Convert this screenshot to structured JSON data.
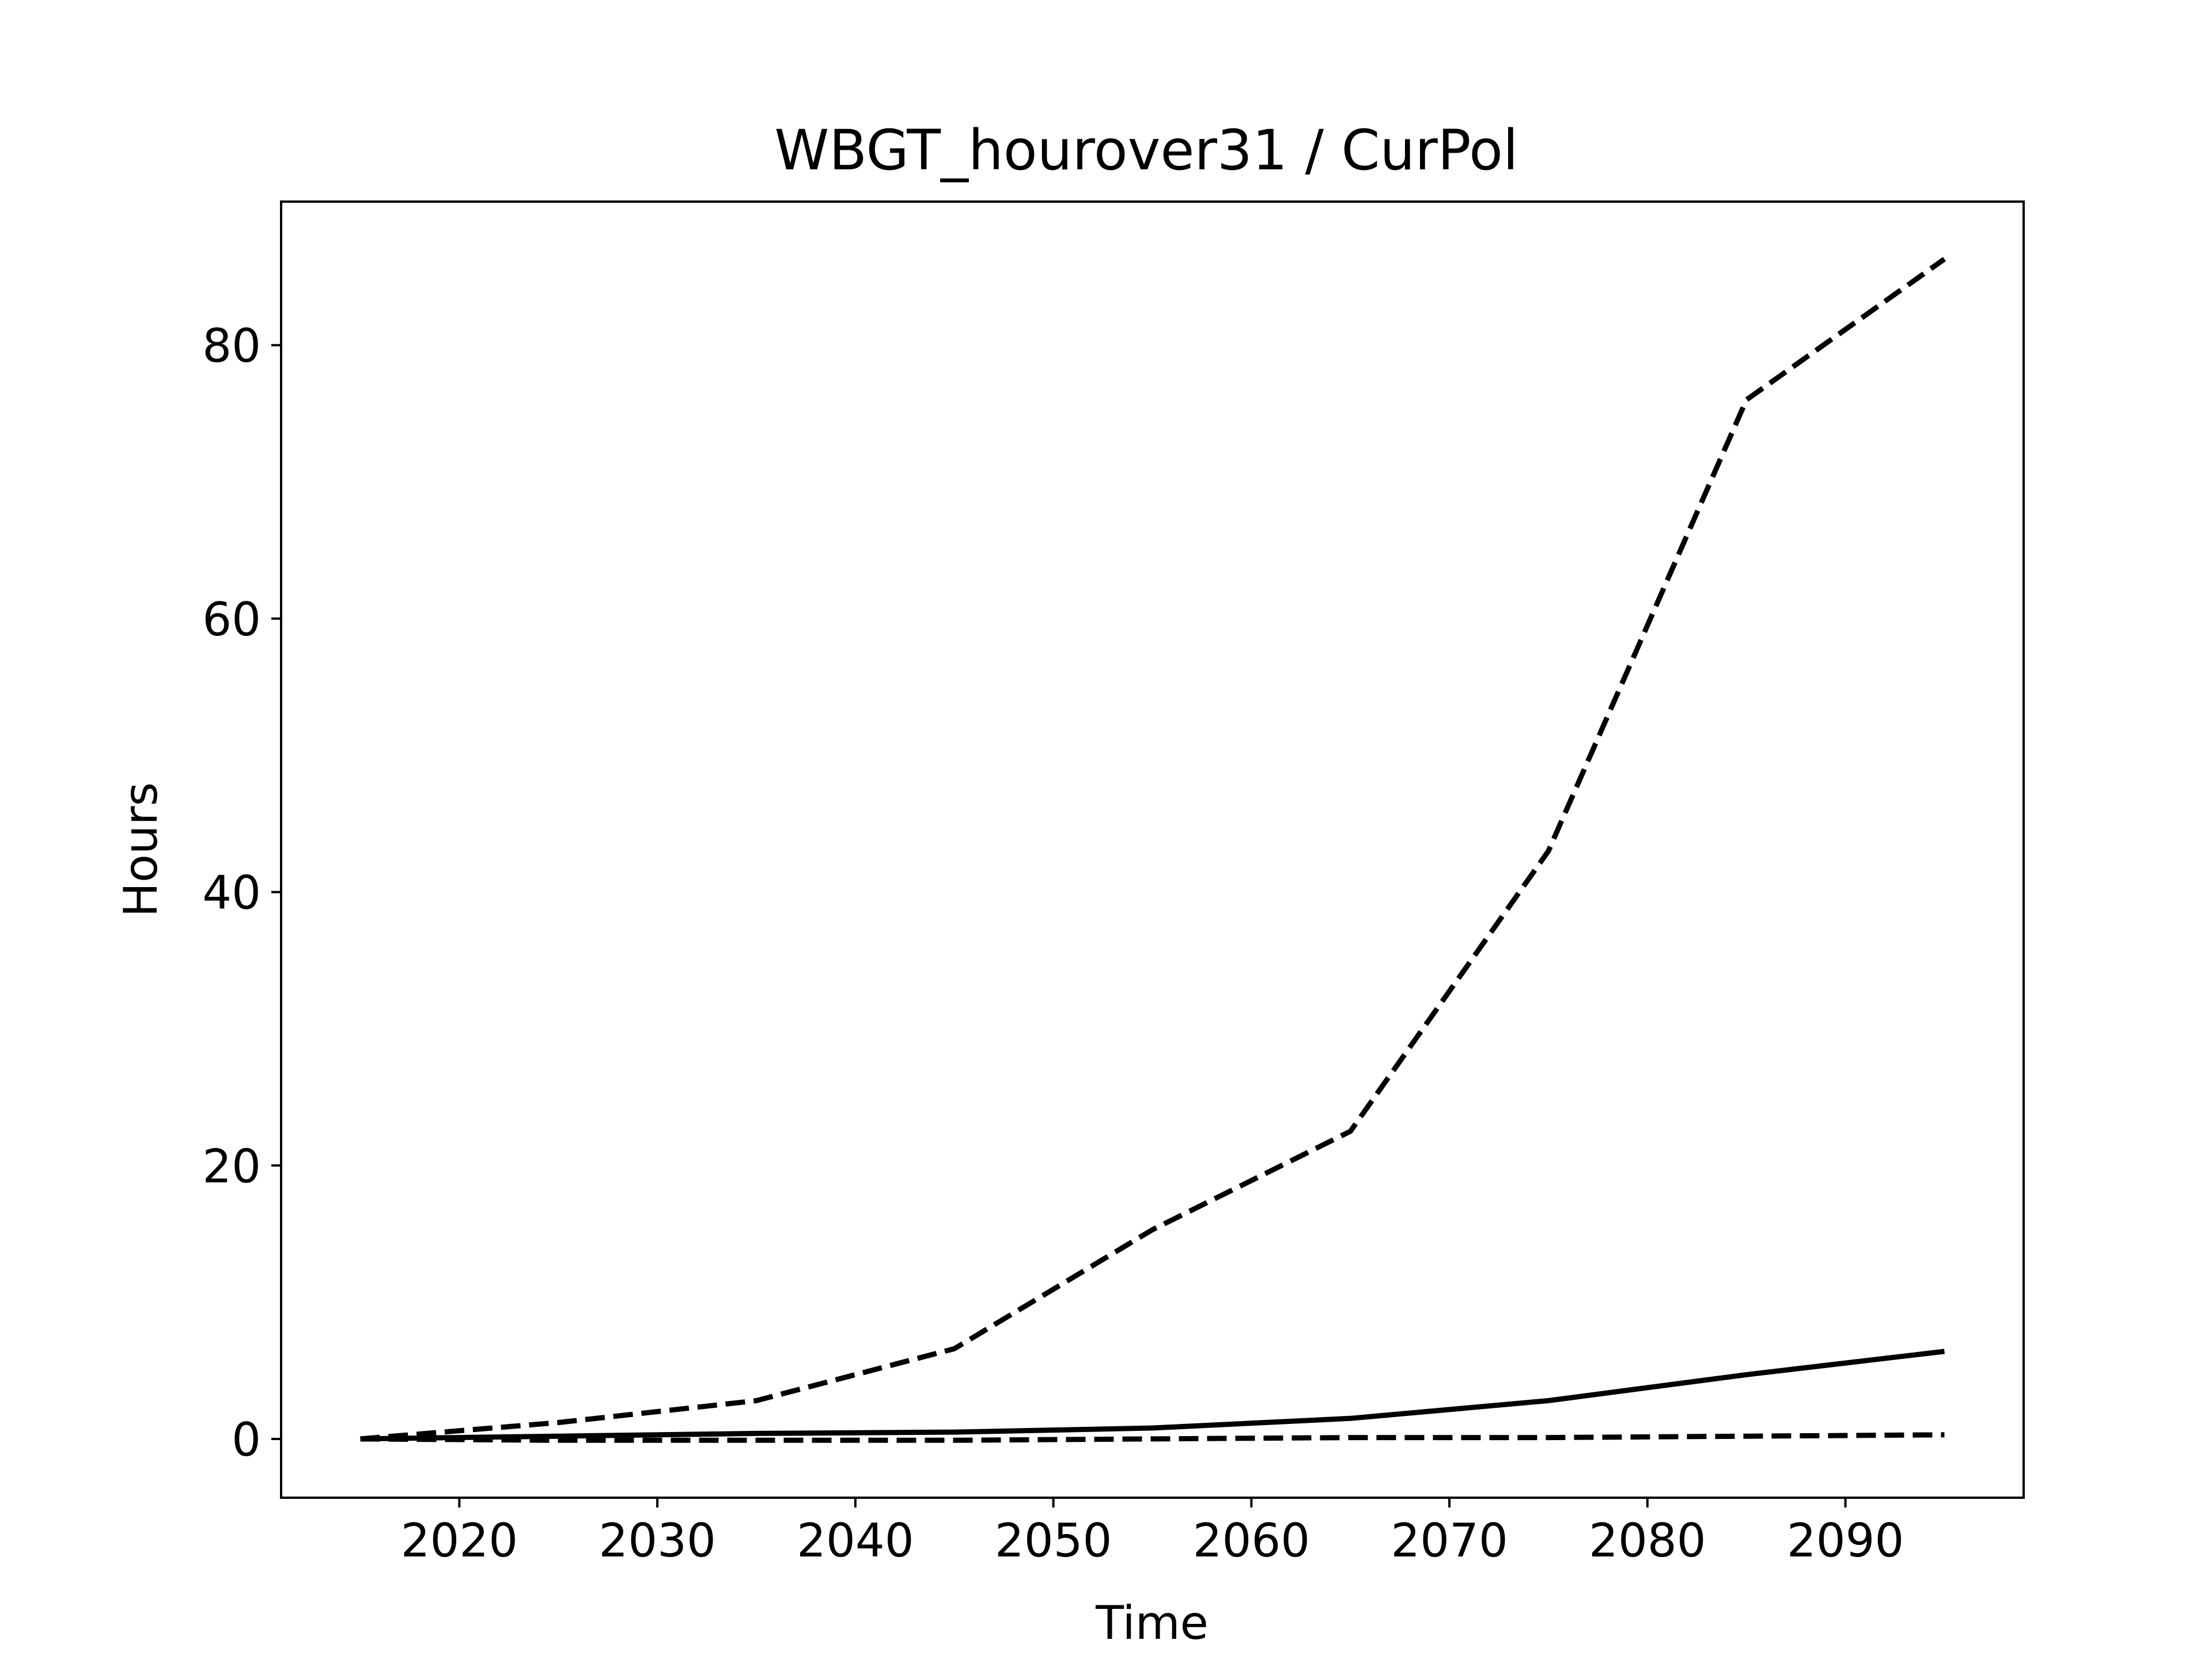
{
  "chart_data": {
    "type": "line",
    "title": "WBGT_hourover31 / CurPol",
    "xlabel": "Time",
    "ylabel": "Hours",
    "xlim": [
      2011,
      2099
    ],
    "ylim": [
      -4.3,
      90.5
    ],
    "xticks": [
      2020,
      2030,
      2040,
      2050,
      2060,
      2070,
      2080,
      2090
    ],
    "yticks": [
      0,
      20,
      40,
      60,
      80
    ],
    "grid": false,
    "line_color": "#000000",
    "series": [
      {
        "style": "dashed",
        "x": [
          2015,
          2025,
          2035,
          2045,
          2055,
          2065,
          2075,
          2085,
          2095
        ],
        "values": [
          0,
          1.2,
          2.8,
          6.6,
          15.3,
          22.5,
          43.0,
          76.0,
          86.3
        ]
      },
      {
        "style": "solid",
        "x": [
          2015,
          2025,
          2035,
          2045,
          2055,
          2065,
          2075,
          2085,
          2095
        ],
        "values": [
          0,
          0.2,
          0.4,
          0.5,
          0.8,
          1.5,
          2.8,
          4.7,
          6.4
        ]
      },
      {
        "style": "dashed",
        "x": [
          2015,
          2025,
          2035,
          2045,
          2055,
          2065,
          2075,
          2085,
          2095
        ],
        "values": [
          0,
          -0.1,
          -0.1,
          -0.1,
          0,
          0.1,
          0.1,
          0.2,
          0.3
        ]
      }
    ]
  }
}
